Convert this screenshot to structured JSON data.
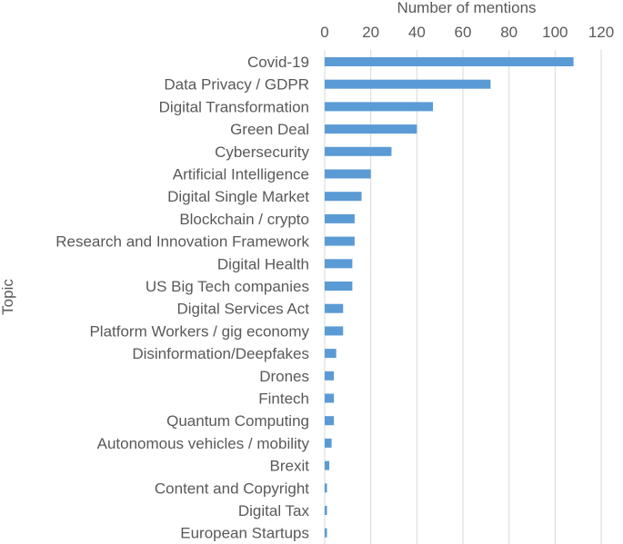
{
  "chart_data": {
    "type": "bar",
    "orientation": "horizontal",
    "xlabel": "Number of mentions",
    "ylabel": "Topic",
    "xlim": [
      0,
      120
    ],
    "xticks": [
      0,
      20,
      40,
      60,
      80,
      100,
      120
    ],
    "grid": true,
    "axis_position": "top",
    "bar_color": "#5b9bd5",
    "categories": [
      "Covid-19",
      "Data Privacy / GDPR",
      "Digital Transformation",
      "Green Deal",
      "Cybersecurity",
      "Artificial Intelligence",
      "Digital Single Market",
      "Blockchain / crypto",
      "Research and Innovation Framework",
      "Digital Health",
      "US Big Tech companies",
      "Digital Services Act",
      "Platform Workers / gig economy",
      "Disinformation/Deepfakes",
      "Drones",
      "Fintech",
      "Quantum Computing",
      "Autonomous vehicles / mobility",
      "Brexit",
      "Content and Copyright",
      "Digital Tax",
      "European Startups"
    ],
    "values": [
      108,
      72,
      47,
      40,
      29,
      20,
      16,
      13,
      13,
      12,
      12,
      8,
      8,
      5,
      4,
      4,
      4,
      3,
      2,
      1,
      1,
      1
    ]
  }
}
